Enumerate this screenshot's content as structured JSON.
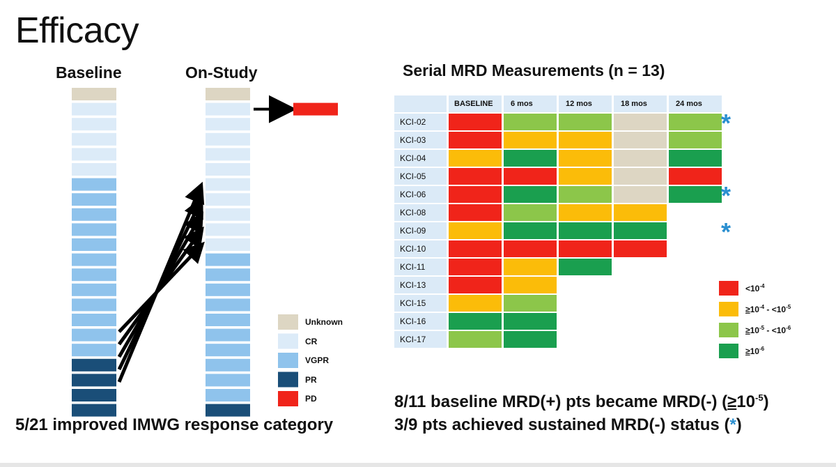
{
  "title": "Efficacy",
  "left_chart": {
    "baseline_label": "Baseline",
    "onstudy_label": "On-Study",
    "footnote": "5/21 improved IMWG response category",
    "legend": [
      {
        "label": "Unknown",
        "key": "unknown"
      },
      {
        "label": "CR",
        "key": "cr"
      },
      {
        "label": "VGPR",
        "key": "vgpr"
      },
      {
        "label": "PR",
        "key": "pr"
      },
      {
        "label": "PD",
        "key": "pd"
      }
    ]
  },
  "right_chart": {
    "title": "Serial MRD Measurements (n = 13)",
    "columns": [
      "BASELINE",
      "6 mos",
      "12 mos",
      "18 mos",
      "24 mos"
    ],
    "legend": [
      {
        "label_parts": [
          "<10",
          "-4",
          ""
        ],
        "key": "r"
      },
      {
        "label_parts": [
          "≥10",
          "-4",
          " - <10",
          "-5",
          ""
        ],
        "key": "o"
      },
      {
        "label_parts": [
          "≥10",
          "-5",
          " - <10",
          "-6",
          ""
        ],
        "key": "lg"
      },
      {
        "label_parts": [
          "≥10",
          "-6",
          ""
        ],
        "key": "dg"
      }
    ],
    "footnote1_parts": [
      "8/11 baseline MRD(+) pts became MRD(-) (",
      "≥",
      "10",
      "-5",
      ")"
    ],
    "footnote2_parts": [
      "3/9 pts achieved sustained MRD(-) status (",
      "*",
      ")"
    ]
  },
  "colors": {
    "unknown": "#ddd6c3",
    "cr": "#dcebf8",
    "vgpr": "#8fc3ec",
    "pr": "#1a4e78",
    "pd": "#f0241a",
    "r": "#f0241a",
    "o": "#fbbc09",
    "lg": "#8cc64a",
    "dg": "#1a9f4f",
    "x": "#ddd6c3",
    "label_bg": "#dbeaf7",
    "asterisk": "#2a8fd0"
  },
  "chart_data": [
    {
      "type": "table",
      "title": "",
      "description_columns": [
        "Baseline",
        "On-Study"
      ],
      "categories_order_top_to_bottom": true,
      "baseline": [
        "unknown",
        "cr",
        "cr",
        "cr",
        "cr",
        "cr",
        "vgpr",
        "vgpr",
        "vgpr",
        "vgpr",
        "vgpr",
        "vgpr",
        "vgpr",
        "vgpr",
        "vgpr",
        "vgpr",
        "vgpr",
        "vgpr",
        "pr",
        "pr",
        "pr",
        "pr"
      ],
      "onstudy": [
        "unknown",
        "cr",
        "cr",
        "cr",
        "cr",
        "cr",
        "cr",
        "cr",
        "cr",
        "cr",
        "cr",
        "vgpr",
        "vgpr",
        "vgpr",
        "vgpr",
        "vgpr",
        "vgpr",
        "vgpr",
        "vgpr",
        "vgpr",
        "vgpr",
        "pr"
      ],
      "progressed_to_pd_from_index": 1,
      "improvements": 5,
      "total": 21
    },
    {
      "type": "heatmap",
      "title": "Serial MRD Measurements (n = 13)",
      "columns": [
        "BASELINE",
        "6 mos",
        "12 mos",
        "18 mos",
        "24 mos"
      ],
      "rows": [
        {
          "id": "KCI-02",
          "cells": [
            "r",
            "lg",
            "lg",
            "x",
            "lg"
          ],
          "sustained": true
        },
        {
          "id": "KCI-03",
          "cells": [
            "r",
            "o",
            "o",
            "x",
            "lg"
          ],
          "sustained": false
        },
        {
          "id": "KCI-04",
          "cells": [
            "o",
            "dg",
            "o",
            "x",
            "dg"
          ],
          "sustained": false
        },
        {
          "id": "KCI-05",
          "cells": [
            "r",
            "r",
            "o",
            "x",
            "r"
          ],
          "sustained": false
        },
        {
          "id": "KCI-06",
          "cells": [
            "r",
            "dg",
            "lg",
            "x",
            "dg"
          ],
          "sustained": true
        },
        {
          "id": "KCI-08",
          "cells": [
            "r",
            "lg",
            "o",
            "o"
          ],
          "sustained": false
        },
        {
          "id": "KCI-09",
          "cells": [
            "o",
            "dg",
            "dg",
            "dg"
          ],
          "sustained": true
        },
        {
          "id": "KCI-10",
          "cells": [
            "r",
            "r",
            "r",
            "r"
          ],
          "sustained": false
        },
        {
          "id": "KCI-11",
          "cells": [
            "r",
            "o",
            "dg"
          ],
          "sustained": false
        },
        {
          "id": "KCI-13",
          "cells": [
            "r",
            "o"
          ],
          "sustained": false
        },
        {
          "id": "KCI-15",
          "cells": [
            "o",
            "lg"
          ],
          "sustained": false
        },
        {
          "id": "KCI-16",
          "cells": [
            "dg",
            "dg"
          ],
          "sustained": false
        },
        {
          "id": "KCI-17",
          "cells": [
            "lg",
            "dg"
          ],
          "sustained": false
        }
      ],
      "legend": [
        "<10^-4",
        "≥10^-4 - <10^-5",
        "≥10^-5 - <10^-6",
        "≥10^-6"
      ]
    }
  ]
}
